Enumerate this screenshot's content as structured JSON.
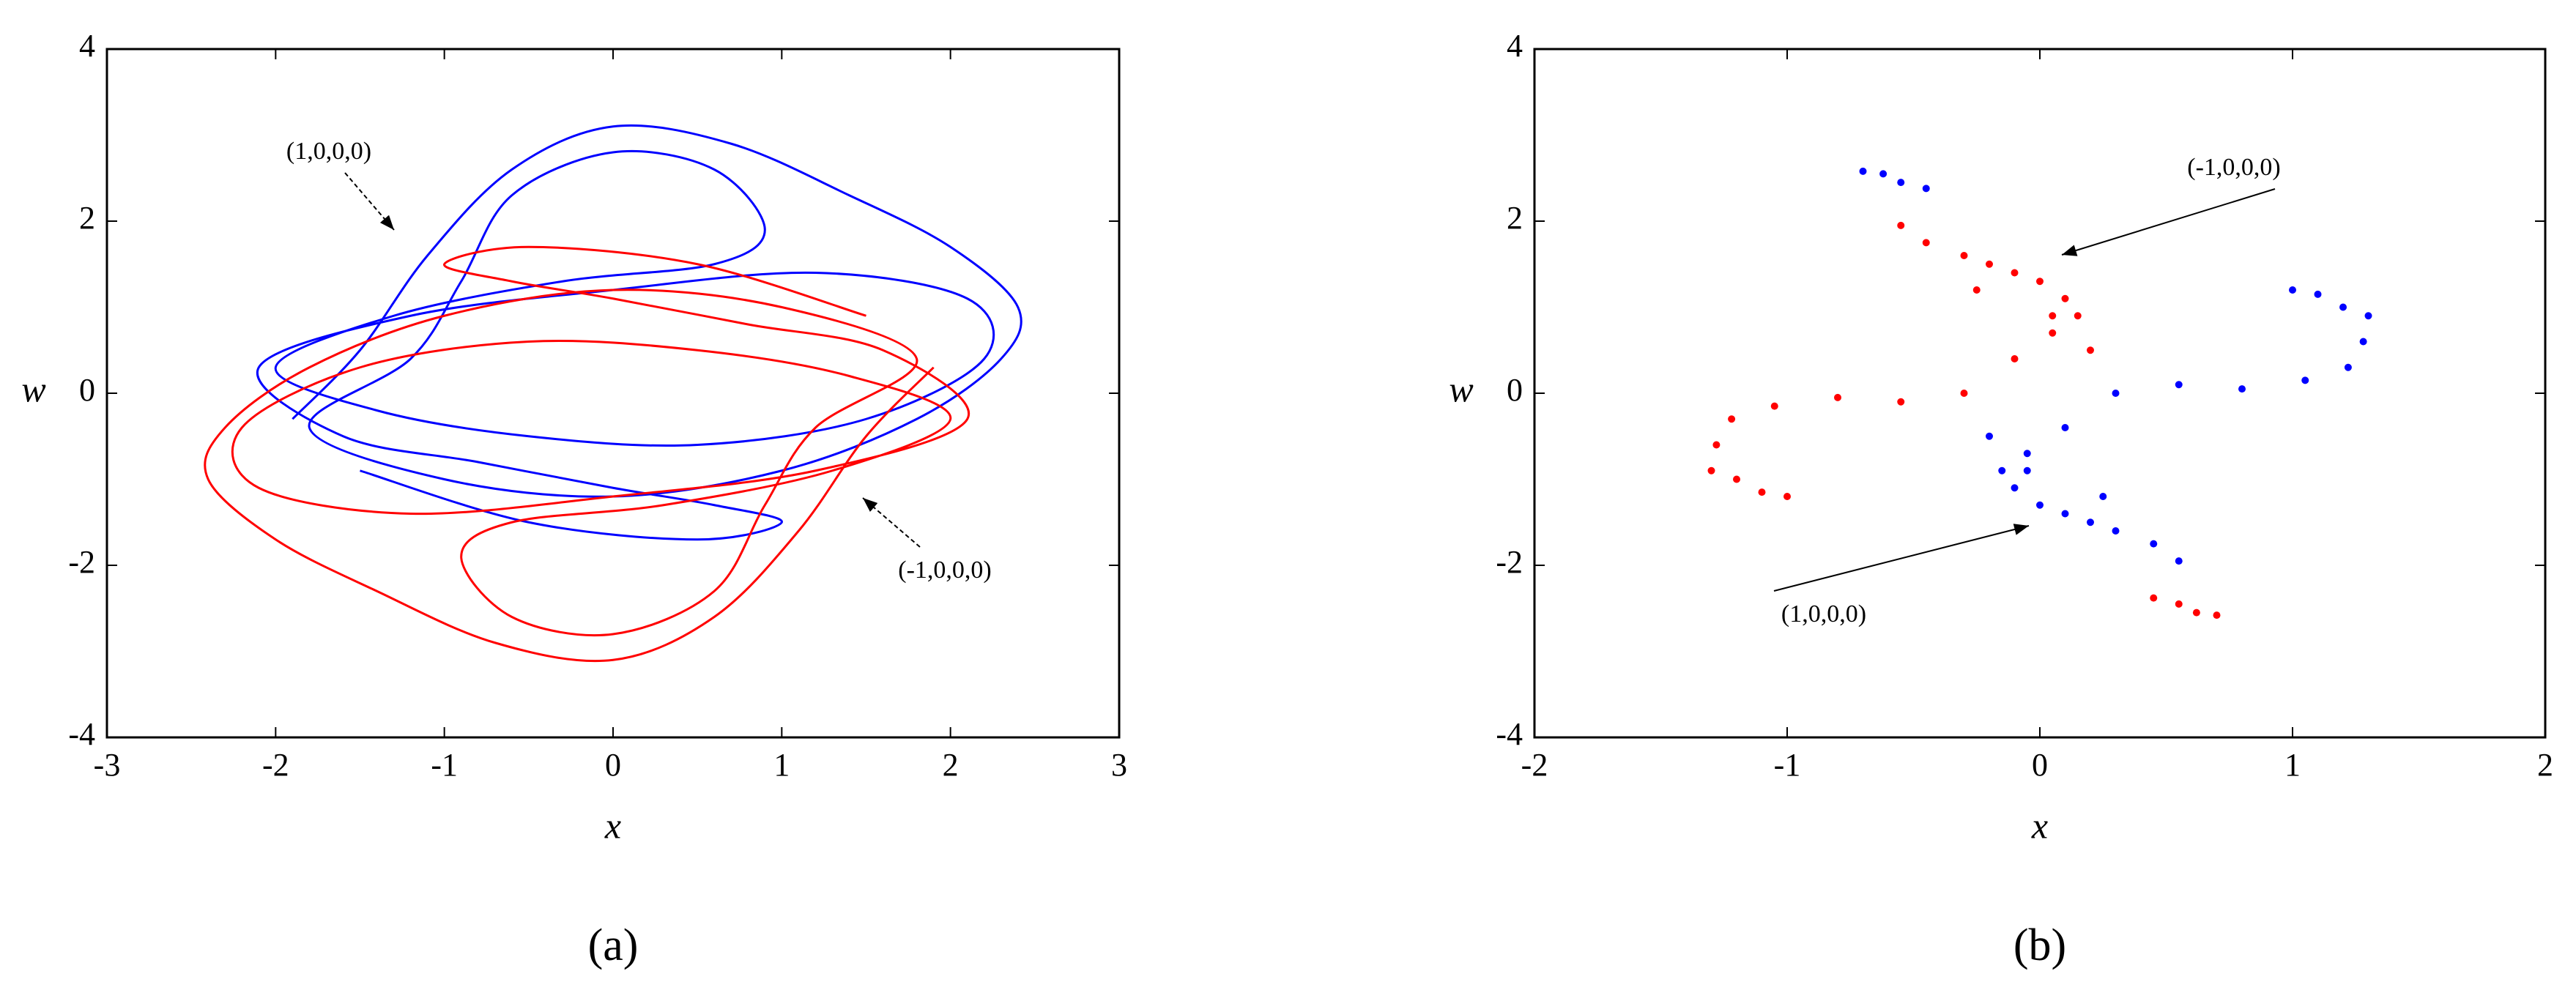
{
  "chart_data": [
    {
      "type": "line",
      "panel_label": "(a)",
      "x_label": "x",
      "y_label": "w",
      "xlim": [
        -3,
        3
      ],
      "xticks": [
        -3,
        -2,
        -1,
        0,
        1,
        2,
        3
      ],
      "ylim": [
        -4,
        4
      ],
      "yticks": [
        -4,
        -2,
        0,
        2,
        4
      ],
      "grid": false,
      "series": [
        {
          "name": "(1,0,0,0)",
          "color": "#0000ff",
          "x": [
            -1.9,
            -1.5,
            -1.1,
            -0.6,
            0,
            0.7,
            1.4,
            2.0,
            2.4,
            2.3,
            1.8,
            1.0,
            0,
            -1.0,
            -1.8,
            -1.2,
            -0.9,
            -0.6,
            0,
            0.6,
            0.9,
            0.6,
            -0.3,
            -1.3,
            -2.0,
            -1.4,
            -0.5,
            0.5,
            1.5,
            2.2,
            2.1,
            1.2,
            0,
            -1.2,
            -2.1,
            -1.6,
            -0.8,
            0,
            0.6,
            1.0,
            0.5,
            -0.5,
            -1.5
          ],
          "values": [
            -0.3,
            0.5,
            1.6,
            2.6,
            3.1,
            2.9,
            2.3,
            1.7,
            1.0,
            0.4,
            -0.3,
            -0.9,
            -1.2,
            -1.0,
            -0.4,
            0.4,
            1.3,
            2.3,
            2.8,
            2.6,
            1.9,
            1.5,
            1.3,
            0.9,
            0.3,
            -0.2,
            -0.5,
            -0.6,
            -0.3,
            0.4,
            1.1,
            1.4,
            1.2,
            0.9,
            0.3,
            -0.5,
            -0.8,
            -1.1,
            -1.3,
            -1.5,
            -1.7,
            -1.5,
            -0.9
          ]
        },
        {
          "name": "(-1,0,0,0)",
          "color": "#ff0000",
          "x": [
            1.9,
            1.5,
            1.1,
            0.6,
            0,
            -0.7,
            -1.4,
            -2.0,
            -2.4,
            -2.3,
            -1.8,
            -1.0,
            0,
            1.0,
            1.8,
            1.2,
            0.9,
            0.6,
            0,
            -0.6,
            -0.9,
            -0.6,
            0.3,
            1.3,
            2.0,
            1.4,
            0.5,
            -0.5,
            -1.5,
            -2.2,
            -2.1,
            -1.2,
            0,
            1.2,
            2.1,
            1.6,
            0.8,
            0,
            -0.6,
            -1.0,
            -0.5,
            0.5,
            1.5
          ],
          "values": [
            0.3,
            -0.5,
            -1.6,
            -2.6,
            -3.1,
            -2.9,
            -2.3,
            -1.7,
            -1.0,
            -0.4,
            0.3,
            0.9,
            1.2,
            1.0,
            0.4,
            -0.4,
            -1.3,
            -2.3,
            -2.8,
            -2.6,
            -1.9,
            -1.5,
            -1.3,
            -0.9,
            -0.3,
            0.2,
            0.5,
            0.6,
            0.3,
            -0.4,
            -1.1,
            -1.4,
            -1.2,
            -0.9,
            -0.3,
            0.5,
            0.8,
            1.1,
            1.3,
            1.5,
            1.7,
            1.5,
            0.9
          ]
        }
      ]
    },
    {
      "type": "scatter",
      "panel_label": "(b)",
      "x_label": "x",
      "y_label": "w",
      "xlim": [
        -2,
        2
      ],
      "xticks": [
        -2,
        -1,
        0,
        1,
        2
      ],
      "ylim": [
        -4,
        4
      ],
      "yticks": [
        -4,
        -2,
        0,
        2,
        4
      ],
      "grid": false,
      "series": [
        {
          "name": "(1,0,0,0)",
          "color": "#0000ff",
          "x": [
            -0.7,
            -0.62,
            -0.55,
            -0.45,
            1.0,
            1.1,
            1.2,
            1.28,
            1.3,
            1.22,
            1.05,
            0.8,
            0.55,
            0.3,
            0.1,
            -0.05,
            -0.15,
            -0.1,
            0.0,
            0.1,
            0.2,
            0.3,
            0.45,
            0.55,
            -0.2,
            -0.05,
            0.25
          ],
          "values": [
            2.58,
            2.55,
            2.45,
            2.38,
            1.2,
            1.15,
            1.0,
            0.6,
            0.9,
            0.3,
            0.15,
            0.05,
            0.1,
            0.0,
            -0.4,
            -0.7,
            -0.9,
            -1.1,
            -1.3,
            -1.4,
            -1.5,
            -1.6,
            -1.75,
            -1.95,
            -0.5,
            -0.9,
            -1.2
          ]
        },
        {
          "name": "(-1,0,0,0)",
          "color": "#ff0000",
          "x": [
            0.7,
            0.62,
            0.55,
            0.45,
            -1.0,
            -1.1,
            -1.2,
            -1.28,
            -1.3,
            -1.22,
            -1.05,
            -0.8,
            -0.55,
            -0.3,
            -0.1,
            0.05,
            0.15,
            0.1,
            0.0,
            -0.1,
            -0.2,
            -0.3,
            -0.45,
            -0.55,
            0.2,
            0.05,
            -0.25
          ],
          "values": [
            -2.58,
            -2.55,
            -2.45,
            -2.38,
            -1.2,
            -1.15,
            -1.0,
            -0.6,
            -0.9,
            -0.3,
            -0.15,
            -0.05,
            -0.1,
            0.0,
            0.4,
            0.7,
            0.9,
            1.1,
            1.3,
            1.4,
            1.5,
            1.6,
            1.75,
            1.95,
            0.5,
            0.9,
            1.2
          ]
        }
      ]
    }
  ]
}
